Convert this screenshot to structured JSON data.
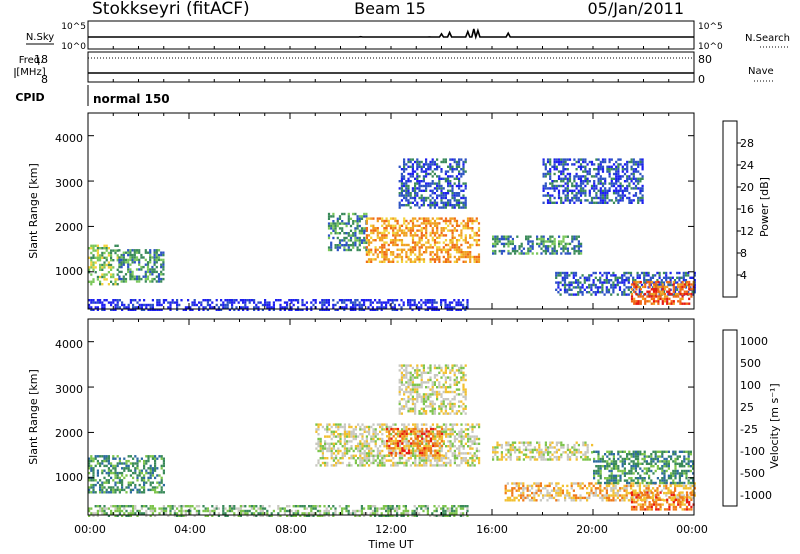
{
  "header": {
    "station": "Stokkseyri (fitACF)",
    "beam": "Beam 15",
    "date": "05/Jan/2011"
  },
  "aux_panels": {
    "nsky_label": "N.Sky",
    "nsky_ticks": [
      "10^5",
      "10^0"
    ],
    "nsearch_label": "N.Search",
    "nsearch_ticks": [
      "10^5",
      "10^0"
    ],
    "freq_label_line1": "Freq.",
    "freq_label_line2": "[MHz]",
    "freq_ticks": [
      "18",
      "8"
    ],
    "nave_label": "Nave",
    "nave_ticks": [
      "80",
      "0"
    ],
    "cpid_label": "CPID",
    "cpid_value": "normal 150"
  },
  "power_panel": {
    "ylabel": "Slant Range [km]",
    "yticks": [
      "1000",
      "2000",
      "3000",
      "4000"
    ],
    "colorbar_label": "Power [dB]",
    "colorbar_ticks": [
      "4",
      "8",
      "12",
      "16",
      "20",
      "24",
      "28"
    ],
    "colorbar_colors": [
      "#1d1ff0",
      "#2c52c4",
      "#3a8a5a",
      "#7bc85a",
      "#f2d23a",
      "#f0a020",
      "#f06a14",
      "#e81a10"
    ]
  },
  "velocity_panel": {
    "ylabel": "Slant Range [km]",
    "yticks": [
      "1000",
      "2000",
      "3000",
      "4000"
    ],
    "colorbar_label": "Velocity [m s⁻¹]",
    "colorbar_ticks": [
      "1000",
      "500",
      "100",
      "25",
      "-25",
      "-100",
      "-500",
      "-1000"
    ],
    "colorbar_colors": [
      "#1a2fb8",
      "#2c6aa0",
      "#3a8a5a",
      "#7cc44a",
      "#c8c8c0",
      "#f2c030",
      "#f07a18",
      "#e81a10"
    ]
  },
  "xaxis": {
    "ticks": [
      "00:00",
      "04:00",
      "08:00",
      "12:00",
      "16:00",
      "20:00",
      "00:00"
    ],
    "label": "Time UT"
  },
  "chart_data": {
    "type": "heatmap",
    "x_range_hours": [
      0,
      24
    ],
    "y_range_km": [
      180,
      4500
    ],
    "power_regions": [
      {
        "t0": 0.0,
        "t1": 1.2,
        "r0": 750,
        "r1": 1600,
        "level": 3
      },
      {
        "t0": 1.2,
        "t1": 3.0,
        "r0": 800,
        "r1": 1500,
        "level": 2
      },
      {
        "t0": 9.5,
        "t1": 11.0,
        "r0": 1500,
        "r1": 2300,
        "level": 2
      },
      {
        "t0": 11.0,
        "t1": 15.5,
        "r0": 1200,
        "r1": 2200,
        "level": 5
      },
      {
        "t0": 12.3,
        "t1": 15.0,
        "r0": 2400,
        "r1": 3500,
        "level": 1
      },
      {
        "t0": 16.0,
        "t1": 19.5,
        "r0": 1400,
        "r1": 1800,
        "level": 2
      },
      {
        "t0": 18.5,
        "t1": 24.0,
        "r0": 500,
        "r1": 1000,
        "level": 1
      },
      {
        "t0": 21.5,
        "t1": 24.0,
        "r0": 300,
        "r1": 800,
        "level": 6
      },
      {
        "t0": 18.0,
        "t1": 22.0,
        "r0": 2500,
        "r1": 3500,
        "level": 1
      },
      {
        "t0": 0.0,
        "t1": 15.0,
        "r0": 180,
        "r1": 400,
        "level": 0
      }
    ],
    "velocity_regions": [
      {
        "t0": 0.0,
        "t1": 3.0,
        "r0": 700,
        "r1": 1500,
        "level": 2
      },
      {
        "t0": 9.0,
        "t1": 15.5,
        "r0": 1300,
        "r1": 2200,
        "level": 4
      },
      {
        "t0": 11.8,
        "t1": 14.0,
        "r0": 1500,
        "r1": 2100,
        "level": 6
      },
      {
        "t0": 12.3,
        "t1": 15.0,
        "r0": 2400,
        "r1": 3500,
        "level": 4
      },
      {
        "t0": 16.0,
        "t1": 20.0,
        "r0": 1400,
        "r1": 1800,
        "level": 4
      },
      {
        "t0": 16.5,
        "t1": 24.0,
        "r0": 500,
        "r1": 900,
        "level": 5
      },
      {
        "t0": 21.5,
        "t1": 24.0,
        "r0": 300,
        "r1": 700,
        "level": 6
      },
      {
        "t0": 20.0,
        "t1": 24.0,
        "r0": 900,
        "r1": 1600,
        "level": 2
      },
      {
        "t0": 0.0,
        "t1": 15.0,
        "r0": 180,
        "r1": 400,
        "level": 3
      }
    ]
  }
}
